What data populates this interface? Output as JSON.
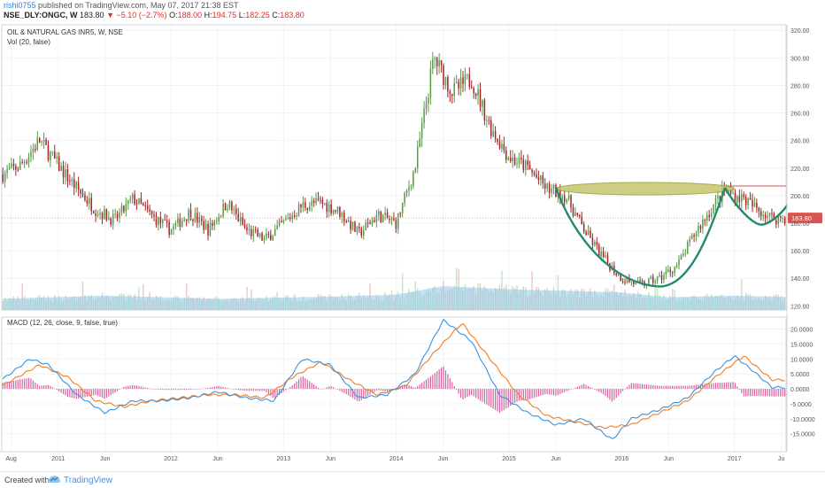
{
  "header": {
    "user": "rishi0755",
    "published": "published on TradingView.com, May 07, 2017 21:38 EST",
    "symbol": "NSE_DLY:ONGC, W",
    "last": "183.80",
    "change": "−5.10 (−2.7%)",
    "ohlc_o_label": "O:",
    "ohlc_o": "188.00",
    "ohlc_h_label": "H:",
    "ohlc_h": "194.75",
    "ohlc_l_label": "L:",
    "ohlc_l": "182.25",
    "ohlc_c_label": "C:",
    "ohlc_c": "183.80"
  },
  "price_panel": {
    "title": "OIL & NATURAL GAS INR5, W, NSE",
    "volume_label": "Vol (20, false)",
    "last_price_badge": "183.80"
  },
  "macd_panel": {
    "title": "MACD (12, 26, close, 9, false, true)"
  },
  "footer": {
    "created_with": "Created with",
    "brand": "TradingView"
  },
  "colors": {
    "up": "#5a9a4a",
    "down": "#a3252a",
    "macd_line": "#3a93e0",
    "signal_line": "#f07e24",
    "histogram": "#cf3a8a",
    "volume": "#8ecae6",
    "cup_curve": "#238a6e",
    "ellipse_fill": "#c5c66f",
    "resistance": "#d9534f"
  },
  "chart_data": [
    {
      "type": "candlestick",
      "title": "OIL & NATURAL GAS INR5, W, NSE",
      "y_ticks": [
        "320.00",
        "300.00",
        "280.00",
        "260.00",
        "240.00",
        "220.00",
        "200.00",
        "180.00",
        "160.00",
        "140.00",
        "120.00"
      ],
      "ylim": [
        117,
        324
      ],
      "x_ticks": [
        "Aug",
        "2011",
        "Jun",
        "2012",
        "Jun",
        "2013",
        "Jun",
        "2014",
        "Jun",
        "2015",
        "Jun",
        "2016",
        "Jun",
        "2017",
        "Ju"
      ],
      "x_tick_dates": [
        "2010-08",
        "2011-01",
        "2011-06",
        "2012-01",
        "2012-06",
        "2013-01",
        "2013-06",
        "2014-01",
        "2014-06",
        "2015-01",
        "2015-06",
        "2016-01",
        "2016-06",
        "2017-01",
        "2017-06"
      ],
      "last_price": 183.8,
      "resistance_level": 207,
      "price_path": [
        [
          "2010-07",
          215
        ],
        [
          "2010-09",
          222
        ],
        [
          "2010-11",
          240
        ],
        [
          "2011-01",
          222
        ],
        [
          "2011-03",
          205
        ],
        [
          "2011-05",
          190
        ],
        [
          "2011-07",
          182
        ],
        [
          "2011-09",
          198
        ],
        [
          "2011-11",
          185
        ],
        [
          "2012-01",
          175
        ],
        [
          "2012-03",
          188
        ],
        [
          "2012-05",
          175
        ],
        [
          "2012-07",
          195
        ],
        [
          "2012-09",
          175
        ],
        [
          "2012-11",
          168
        ],
        [
          "2013-01",
          180
        ],
        [
          "2013-03",
          193
        ],
        [
          "2013-05",
          195
        ],
        [
          "2013-07",
          188
        ],
        [
          "2013-09",
          172
        ],
        [
          "2013-11",
          186
        ],
        [
          "2014-01",
          180
        ],
        [
          "2014-03",
          220
        ],
        [
          "2014-05",
          300
        ],
        [
          "2014-07",
          275
        ],
        [
          "2014-09",
          285
        ],
        [
          "2014-11",
          250
        ],
        [
          "2015-01",
          228
        ],
        [
          "2015-03",
          220
        ],
        [
          "2015-05",
          205
        ],
        [
          "2015-07",
          200
        ],
        [
          "2015-09",
          175
        ],
        [
          "2015-11",
          155
        ],
        [
          "2016-01",
          140
        ],
        [
          "2016-03",
          135
        ],
        [
          "2016-05",
          140
        ],
        [
          "2016-07",
          150
        ],
        [
          "2016-09",
          175
        ],
        [
          "2016-11",
          195
        ],
        [
          "2016-12",
          205
        ],
        [
          "2017-01",
          200
        ],
        [
          "2017-02",
          198
        ],
        [
          "2017-03",
          192
        ],
        [
          "2017-04",
          188
        ],
        [
          "2017-05",
          183.8
        ]
      ],
      "volume_path": [
        [
          "2010-07",
          0.35
        ],
        [
          "2011-06",
          0.45
        ],
        [
          "2012-06",
          0.35
        ],
        [
          "2013-06",
          0.42
        ],
        [
          "2014-01",
          0.48
        ],
        [
          "2014-06",
          0.75
        ],
        [
          "2015-01",
          0.65
        ],
        [
          "2016-01",
          0.55
        ],
        [
          "2016-06",
          0.4
        ],
        [
          "2017-01",
          0.45
        ],
        [
          "2017-05",
          0.42
        ]
      ]
    },
    {
      "type": "macd",
      "title": "MACD (12, 26, close, 9, false, true)",
      "y_ticks": [
        "20.0000",
        "15.0000",
        "10.0000",
        "5.0000",
        "0.0000",
        "-5.0000",
        "-10.0000",
        "-15.0000"
      ],
      "ylim": [
        -21,
        24
      ],
      "series": [
        {
          "name": "MACD",
          "color": "#3a93e0",
          "values": [
            [
              "2010-07",
              3
            ],
            [
              "2010-10",
              10
            ],
            [
              "2010-12",
              8
            ],
            [
              "2011-03",
              -2
            ],
            [
              "2011-06",
              -8
            ],
            [
              "2011-09",
              -4
            ],
            [
              "2011-12",
              -4
            ],
            [
              "2012-03",
              -3
            ],
            [
              "2012-06",
              -1
            ],
            [
              "2012-09",
              -3
            ],
            [
              "2012-12",
              -4
            ],
            [
              "2013-03",
              10
            ],
            [
              "2013-06",
              8
            ],
            [
              "2013-09",
              -3
            ],
            [
              "2013-12",
              -2
            ],
            [
              "2014-03",
              5
            ],
            [
              "2014-06",
              23
            ],
            [
              "2014-09",
              16
            ],
            [
              "2014-12",
              -2
            ],
            [
              "2015-03",
              -8
            ],
            [
              "2015-06",
              -12
            ],
            [
              "2015-09",
              -10
            ],
            [
              "2015-12",
              -17
            ],
            [
              "2016-02",
              -10
            ],
            [
              "2016-05",
              -7
            ],
            [
              "2016-08",
              -3
            ],
            [
              "2016-11",
              6
            ],
            [
              "2017-01",
              11
            ],
            [
              "2017-03",
              6
            ],
            [
              "2017-05",
              0.5
            ]
          ]
        },
        {
          "name": "Signal",
          "color": "#f07e24",
          "values": [
            [
              "2010-07",
              1
            ],
            [
              "2010-11",
              8
            ],
            [
              "2011-02",
              4
            ],
            [
              "2011-05",
              -4
            ],
            [
              "2011-08",
              -6
            ],
            [
              "2011-11",
              -4
            ],
            [
              "2012-02",
              -3
            ],
            [
              "2012-05",
              -2
            ],
            [
              "2012-08",
              -2
            ],
            [
              "2012-11",
              -3
            ],
            [
              "2013-02",
              4
            ],
            [
              "2013-05",
              9
            ],
            [
              "2013-08",
              3
            ],
            [
              "2013-11",
              -2
            ],
            [
              "2014-02",
              1
            ],
            [
              "2014-05",
              12
            ],
            [
              "2014-08",
              22
            ],
            [
              "2014-11",
              10
            ],
            [
              "2015-02",
              -2
            ],
            [
              "2015-05",
              -9
            ],
            [
              "2015-08",
              -11
            ],
            [
              "2015-11",
              -13
            ],
            [
              "2016-02",
              -12
            ],
            [
              "2016-05",
              -8
            ],
            [
              "2016-08",
              -4
            ],
            [
              "2016-11",
              4
            ],
            [
              "2017-02",
              11
            ],
            [
              "2017-05",
              3
            ]
          ]
        }
      ]
    }
  ]
}
